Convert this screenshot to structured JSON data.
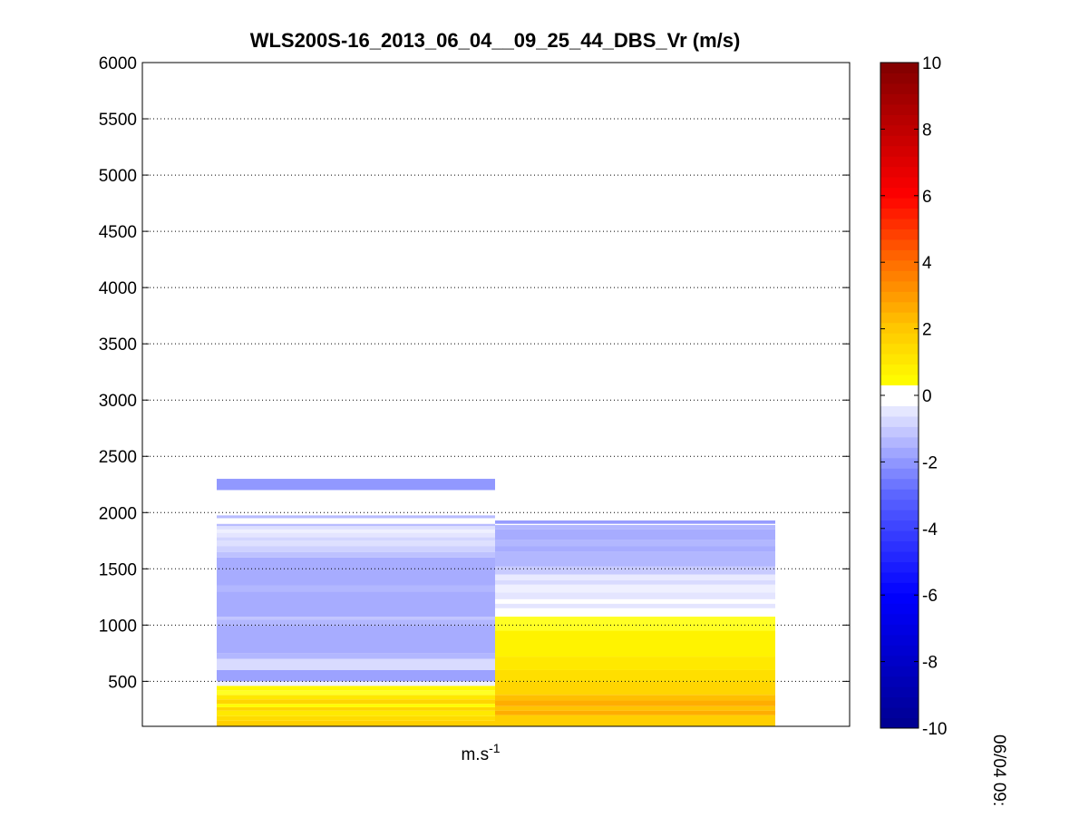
{
  "chart_data": {
    "type": "heatmap",
    "title": "WLS200S-16_2013_06_04__09_25_44_DBS_Vr (m/s)",
    "xlabel_base": "m.s",
    "xlabel_exp": "-1",
    "ylabel": "",
    "ylim": [
      100,
      6000
    ],
    "yticks": [
      500,
      1000,
      1500,
      2000,
      2500,
      3000,
      3500,
      4000,
      4500,
      5000,
      5500,
      6000
    ],
    "grid": "horizontal dotted",
    "colorbar": {
      "range": [
        -10,
        10
      ],
      "ticks": [
        -10,
        -8,
        -6,
        -4,
        -2,
        0,
        2,
        4,
        6,
        8,
        10
      ],
      "colors": {
        "dark_blue": "#00008f",
        "blue": "#0000ff",
        "white": "#ffffff",
        "yellow": "#ffff00",
        "orange": "#ff8000",
        "red": "#ff0000",
        "dark_red": "#800000"
      }
    },
    "time_label": "06/04 09:",
    "columns": [
      {
        "name": "column-1",
        "cells": [
          {
            "y0": 100,
            "y1": 150,
            "v": 1.8
          },
          {
            "y0": 150,
            "y1": 190,
            "v": 1.4
          },
          {
            "y0": 190,
            "y1": 240,
            "v": 1.0
          },
          {
            "y0": 240,
            "y1": 270,
            "v": 1.6
          },
          {
            "y0": 270,
            "y1": 300,
            "v": 0.4
          },
          {
            "y0": 300,
            "y1": 340,
            "v": 1.6
          },
          {
            "y0": 340,
            "y1": 380,
            "v": 1.0
          },
          {
            "y0": 380,
            "y1": 420,
            "v": 0.3
          },
          {
            "y0": 420,
            "y1": 460,
            "v": 0.6
          },
          {
            "y0": 460,
            "y1": 500,
            "v": -0.3
          },
          {
            "y0": 500,
            "y1": 600,
            "v": -1.8
          },
          {
            "y0": 600,
            "y1": 700,
            "v": -0.7
          },
          {
            "y0": 700,
            "y1": 750,
            "v": -1.4
          },
          {
            "y0": 750,
            "y1": 1000,
            "v": -1.6
          },
          {
            "y0": 1000,
            "y1": 1050,
            "v": -1.4
          },
          {
            "y0": 1050,
            "y1": 1075,
            "v": -1.1
          },
          {
            "y0": 1075,
            "y1": 1300,
            "v": -1.6
          },
          {
            "y0": 1300,
            "y1": 1350,
            "v": -1.4
          },
          {
            "y0": 1350,
            "y1": 1600,
            "v": -1.6
          },
          {
            "y0": 1600,
            "y1": 1650,
            "v": -1.2
          },
          {
            "y0": 1650,
            "y1": 1700,
            "v": -0.9
          },
          {
            "y0": 1700,
            "y1": 1750,
            "v": -0.6
          },
          {
            "y0": 1750,
            "y1": 1780,
            "v": -0.8
          },
          {
            "y0": 1780,
            "y1": 1820,
            "v": -0.5
          },
          {
            "y0": 1820,
            "y1": 1850,
            "v": -0.3
          },
          {
            "y0": 1850,
            "y1": 1880,
            "v": -0.6
          },
          {
            "y0": 1880,
            "y1": 1900,
            "v": -1.3
          },
          {
            "y0": 1900,
            "y1": 1950,
            "v": 0
          },
          {
            "y0": 1950,
            "y1": 1975,
            "v": -1.3
          },
          {
            "y0": 2200,
            "y1": 2300,
            "v": -2.0
          }
        ]
      },
      {
        "name": "column-2",
        "cells": [
          {
            "y0": 100,
            "y1": 200,
            "v": 1.8
          },
          {
            "y0": 200,
            "y1": 240,
            "v": 2.6
          },
          {
            "y0": 240,
            "y1": 280,
            "v": 2.1
          },
          {
            "y0": 280,
            "y1": 330,
            "v": 2.6
          },
          {
            "y0": 330,
            "y1": 380,
            "v": 2.2
          },
          {
            "y0": 380,
            "y1": 500,
            "v": 1.6
          },
          {
            "y0": 500,
            "y1": 600,
            "v": 1.3
          },
          {
            "y0": 600,
            "y1": 720,
            "v": 1.0
          },
          {
            "y0": 720,
            "y1": 950,
            "v": 0.7
          },
          {
            "y0": 950,
            "y1": 1075,
            "v": 0.3
          },
          {
            "y0": 1075,
            "y1": 1150,
            "v": 0
          },
          {
            "y0": 1150,
            "y1": 1190,
            "v": -0.5
          },
          {
            "y0": 1190,
            "y1": 1230,
            "v": 0
          },
          {
            "y0": 1230,
            "y1": 1290,
            "v": -0.5
          },
          {
            "y0": 1290,
            "y1": 1360,
            "v": -0.3
          },
          {
            "y0": 1360,
            "y1": 1400,
            "v": -0.7
          },
          {
            "y0": 1400,
            "y1": 1450,
            "v": -0.4
          },
          {
            "y0": 1450,
            "y1": 1520,
            "v": -1.0
          },
          {
            "y0": 1520,
            "y1": 1650,
            "v": -1.4
          },
          {
            "y0": 1650,
            "y1": 1700,
            "v": -1.6
          },
          {
            "y0": 1700,
            "y1": 1760,
            "v": -1.4
          },
          {
            "y0": 1760,
            "y1": 1850,
            "v": -1.6
          },
          {
            "y0": 1850,
            "y1": 1890,
            "v": -1.4
          },
          {
            "y0": 1890,
            "y1": 1900,
            "v": 0
          },
          {
            "y0": 1900,
            "y1": 1930,
            "v": -1.9
          }
        ]
      }
    ]
  }
}
